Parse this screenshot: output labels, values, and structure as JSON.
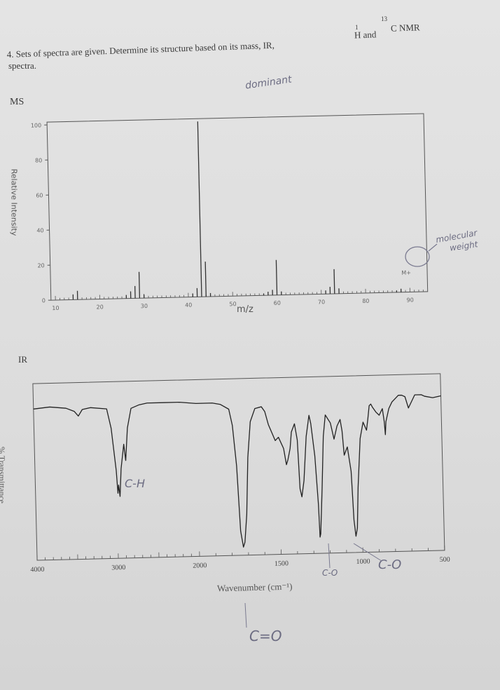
{
  "question": {
    "line1": "4. Sets of spectra are given. Determine its structure based on its mass, IR,",
    "h_mass": "1",
    "h_label": "H and",
    "c_mass": "13",
    "c_label": "C NMR",
    "line2": "spectra."
  },
  "handwritten": {
    "dominant": "dominant",
    "molecular_weight_1": "molecular",
    "molecular_weight_2": "weight",
    "c_h": "C-H",
    "c_o_1": "C-O",
    "c_o_2": "C-O",
    "c_eq_o": "C=O"
  },
  "chart_data": [
    {
      "type": "bar",
      "title": "MS",
      "xlabel": "m/z",
      "ylabel": "Relative Intensity",
      "xlim": [
        9,
        94
      ],
      "ylim": [
        0,
        100
      ],
      "xticks": [
        10,
        20,
        30,
        40,
        50,
        60,
        70,
        80,
        90
      ],
      "yticks": [
        0,
        20,
        40,
        60,
        80,
        100
      ],
      "molecular_ion_label": "M+",
      "peaks": [
        {
          "mz": 14,
          "intensity": 3
        },
        {
          "mz": 15,
          "intensity": 5
        },
        {
          "mz": 26,
          "intensity": 2
        },
        {
          "mz": 27,
          "intensity": 4
        },
        {
          "mz": 28,
          "intensity": 7
        },
        {
          "mz": 29,
          "intensity": 15
        },
        {
          "mz": 30,
          "intensity": 2
        },
        {
          "mz": 41,
          "intensity": 2
        },
        {
          "mz": 42,
          "intensity": 5
        },
        {
          "mz": 43,
          "intensity": 100
        },
        {
          "mz": 44,
          "intensity": 20
        },
        {
          "mz": 45,
          "intensity": 2
        },
        {
          "mz": 57,
          "intensity": 1
        },
        {
          "mz": 58,
          "intensity": 2
        },
        {
          "mz": 59,
          "intensity": 3
        },
        {
          "mz": 60,
          "intensity": 20
        },
        {
          "mz": 61,
          "intensity": 2
        },
        {
          "mz": 71,
          "intensity": 2
        },
        {
          "mz": 72,
          "intensity": 4
        },
        {
          "mz": 73,
          "intensity": 14
        },
        {
          "mz": 74,
          "intensity": 3
        },
        {
          "mz": 87,
          "intensity": 1
        },
        {
          "mz": 88,
          "intensity": 2
        }
      ]
    },
    {
      "type": "line",
      "title": "IR",
      "xlabel": "Wavenumber (cm⁻¹)",
      "ylabel": "% Transmittance",
      "xticks": [
        4000,
        3000,
        2000,
        1500,
        1000,
        500
      ],
      "x_reversed": true,
      "ylim": [
        0,
        100
      ],
      "series": [
        {
          "x": [
            4000,
            3800,
            3600,
            3500,
            3450,
            3400,
            3300,
            3100,
            3050,
            3000,
            2985,
            2975,
            2960,
            2940,
            2900,
            2880,
            2850,
            2800,
            2700,
            2600,
            2400,
            2200,
            2000,
            1900,
            1850,
            1800,
            1780,
            1760,
            1745,
            1730,
            1720,
            1705,
            1690,
            1670,
            1640,
            1600,
            1580,
            1560,
            1520,
            1500,
            1470,
            1455,
            1445,
            1430,
            1420,
            1400,
            1385,
            1375,
            1365,
            1350,
            1330,
            1310,
            1300,
            1280,
            1265,
            1260,
            1255,
            1240,
            1225,
            1210,
            1180,
            1160,
            1140,
            1120,
            1110,
            1100,
            1080,
            1060,
            1050,
            1040,
            1030,
            1020,
            1000,
            980,
            960,
            950,
            940,
            930,
            920,
            900,
            880,
            860,
            850,
            845,
            840,
            820,
            800,
            780,
            760,
            740,
            720,
            700,
            680,
            660,
            640,
            620,
            600,
            550,
            500
          ],
          "y": [
            93,
            94,
            93,
            91,
            88,
            92,
            93,
            92,
            80,
            54,
            40,
            45,
            38,
            55,
            70,
            60,
            80,
            92,
            94,
            95,
            95,
            95,
            94,
            94,
            93,
            90,
            80,
            55,
            15,
            5,
            8,
            25,
            60,
            82,
            90,
            91,
            88,
            80,
            70,
            72,
            65,
            55,
            58,
            65,
            75,
            80,
            70,
            40,
            35,
            45,
            72,
            85,
            80,
            60,
            30,
            10,
            12,
            40,
            72,
            85,
            80,
            70,
            78,
            82,
            75,
            60,
            65,
            50,
            20,
            10,
            15,
            40,
            70,
            80,
            75,
            82,
            90,
            91,
            89,
            86,
            84,
            88,
            80,
            72,
            80,
            88,
            92,
            94,
            96,
            96,
            95,
            88,
            92,
            96,
            96,
            96,
            95,
            94,
            95
          ]
        }
      ]
    }
  ]
}
